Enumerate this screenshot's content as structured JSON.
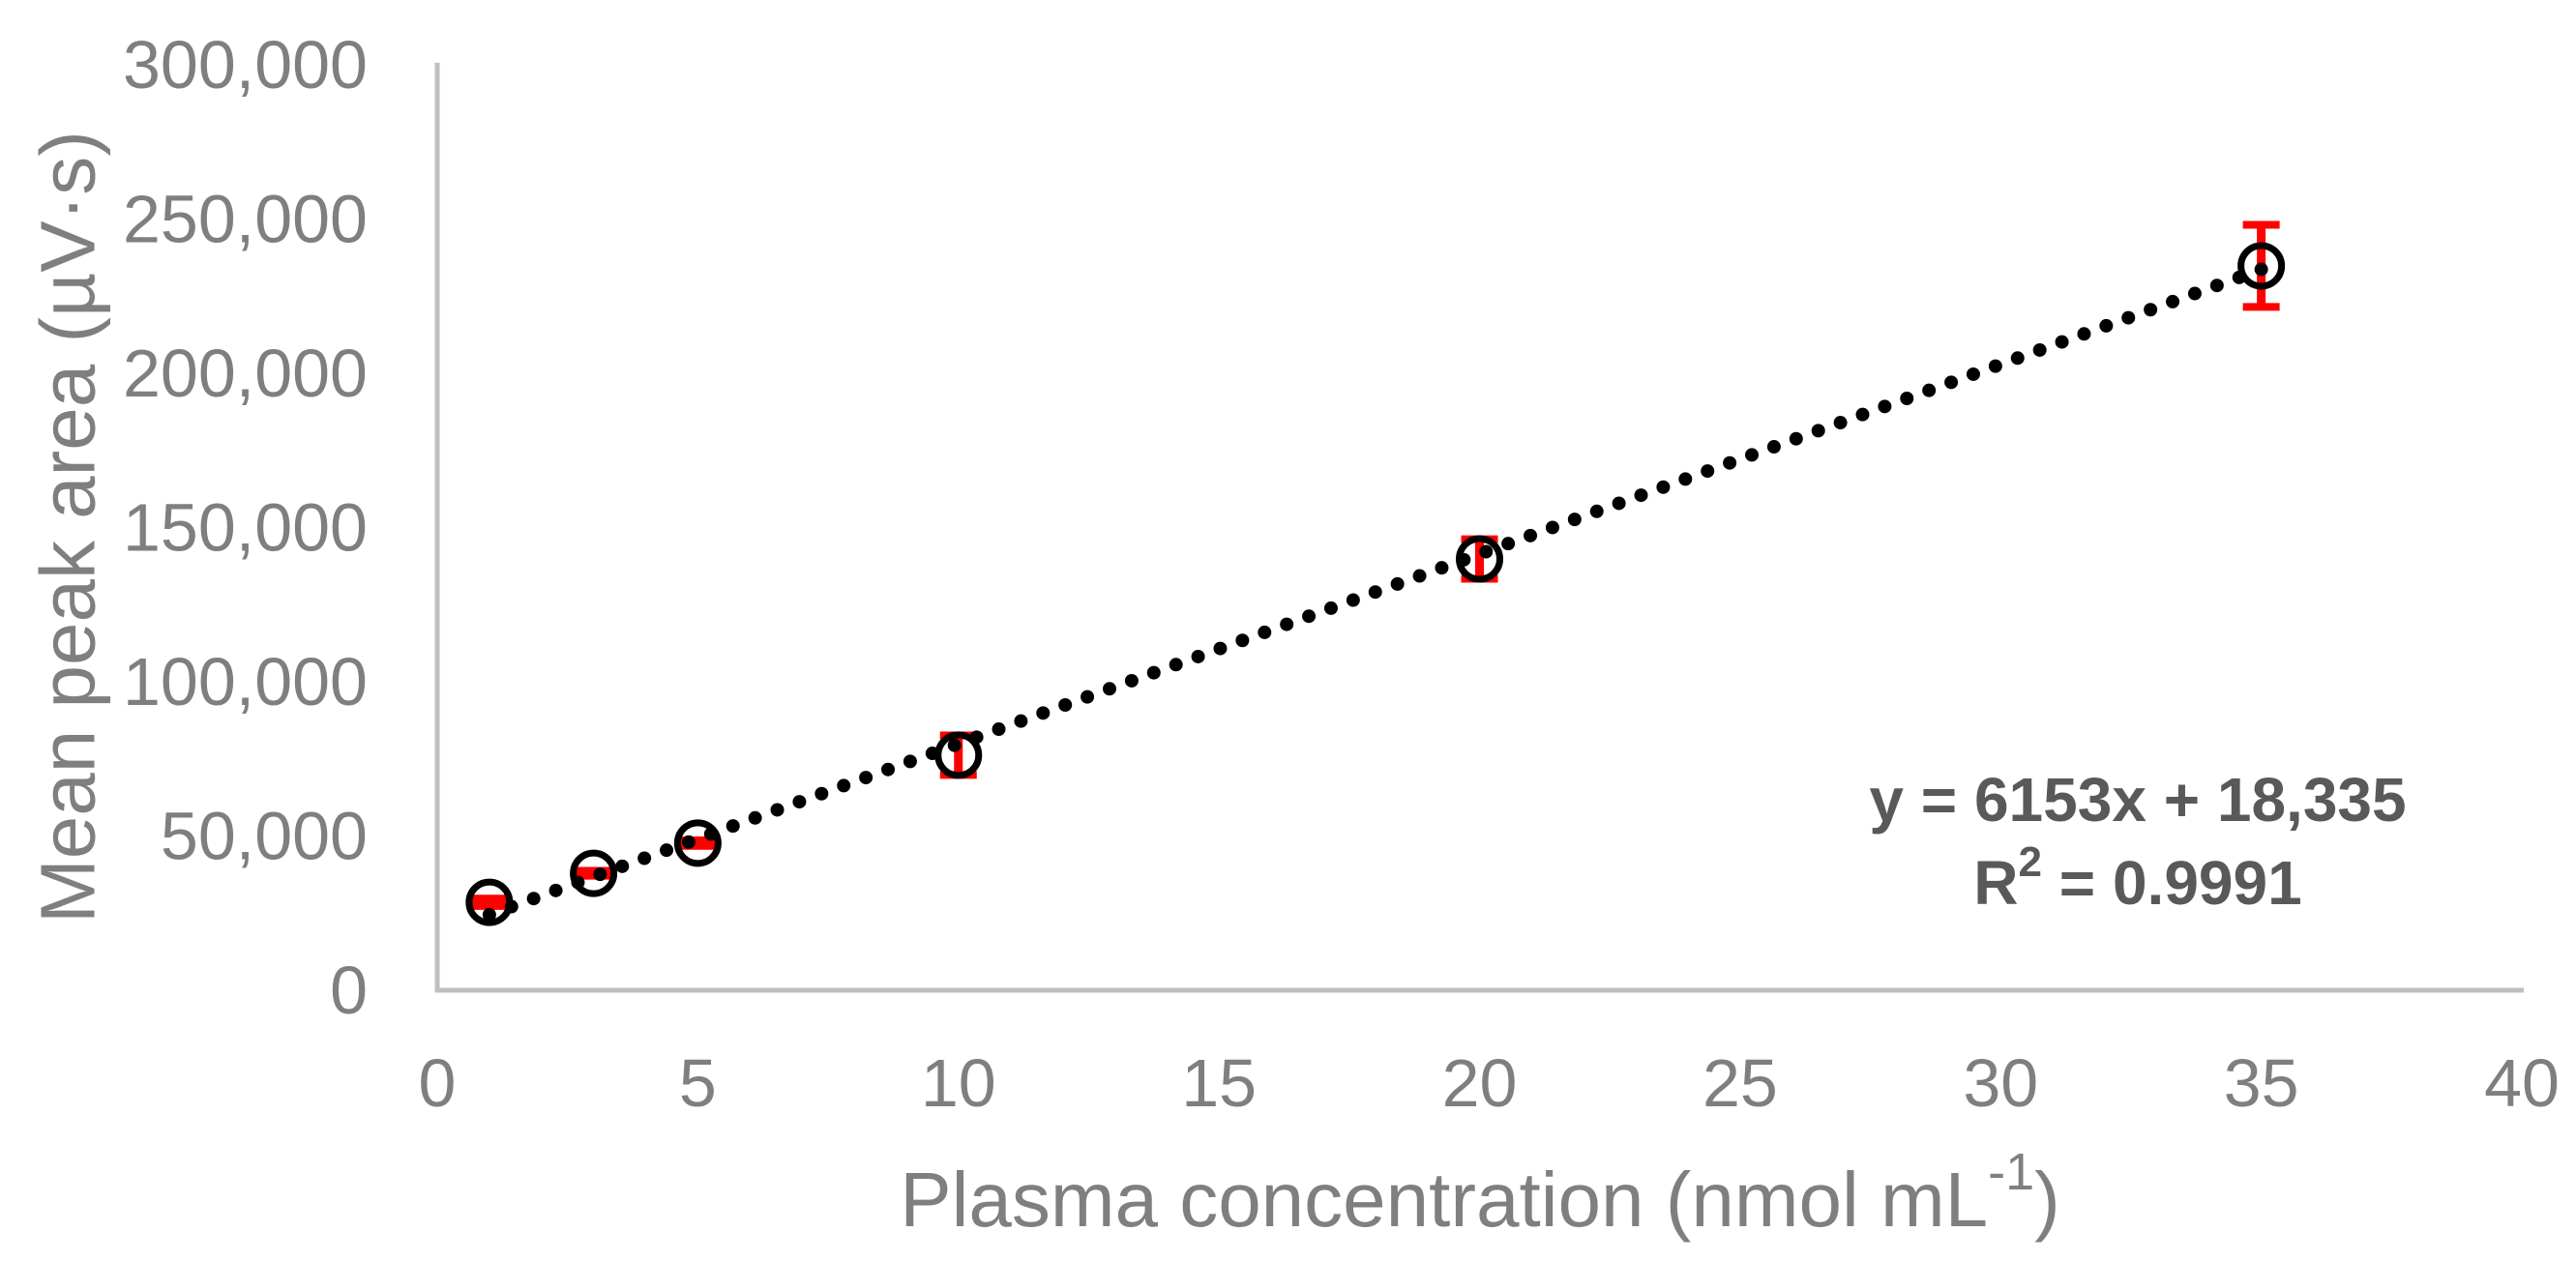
{
  "chart_data": {
    "type": "scatter",
    "title": "",
    "ylabel": "Mean peak area (µV·s)",
    "xlabel_prefix": "Plasma concentration (nmol mL",
    "xlabel_sup": "-1",
    "xlabel_suffix": ")",
    "xlim": [
      0,
      40
    ],
    "ylim": [
      0,
      300000
    ],
    "grid": false,
    "legend": false,
    "x_ticks": {
      "values": [
        0,
        5,
        10,
        15,
        20,
        25,
        30,
        35,
        40
      ],
      "labels": [
        "0",
        "5",
        "10",
        "15",
        "20",
        "25",
        "30",
        "35",
        "40"
      ]
    },
    "y_ticks": {
      "values": [
        0,
        50000,
        100000,
        150000,
        200000,
        250000,
        300000
      ],
      "labels": [
        "0",
        "50,000",
        "100,000",
        "150,000",
        "200,000",
        "250,000",
        "300,000"
      ]
    },
    "series": [
      {
        "name": "mean peak area",
        "marker": "open-circle",
        "points": [
          {
            "x": 1,
            "y": 28500,
            "err": 1200
          },
          {
            "x": 3,
            "y": 37900,
            "err": 800
          },
          {
            "x": 5,
            "y": 47700,
            "err": 900
          },
          {
            "x": 10,
            "y": 76200,
            "err": 6400
          },
          {
            "x": 20,
            "y": 139800,
            "err": 6400
          },
          {
            "x": 35,
            "y": 234800,
            "err": 13300
          }
        ]
      }
    ],
    "trendline": {
      "type": "linear",
      "style": "dotted",
      "slope": 6153,
      "intercept": 18335,
      "x_start": 1,
      "x_end": 35
    },
    "equation": {
      "line1": "y = 6153x + 18,335",
      "r2_base": "R",
      "r2_sup": "2",
      "r2_rest": " = 0.9991"
    },
    "colors": {
      "axis_line": "#BFBFBF",
      "tick_label": "#7F7F7F",
      "axis_title": "#7F7F7F",
      "equation": "#595959",
      "error_bar": "#FF0000",
      "marker": "#000000",
      "trendline": "#000000",
      "background": "#FFFFFF"
    }
  }
}
